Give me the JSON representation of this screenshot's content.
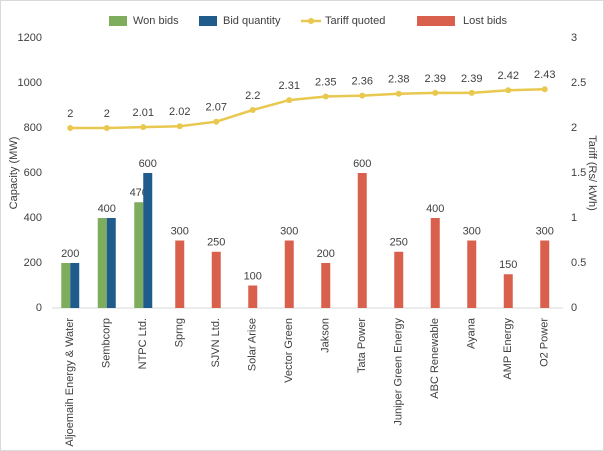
{
  "chart_data": {
    "type": "bar",
    "categories": [
      "Aljoemaih Energy & Water",
      "Sembcorp",
      "NTPC Ltd.",
      "Sprng",
      "SJVN Ltd.",
      "Solar Arise",
      "Vector Green",
      "Jakson",
      "Tata Power",
      "Juniper Green Energy",
      "ABC Renewable",
      "Ayana",
      "AMP Energy",
      "O2 Power"
    ],
    "series": [
      {
        "name": "Won bids",
        "type": "bar",
        "color": "#7fad5e",
        "values": [
          200,
          400,
          470,
          null,
          null,
          null,
          null,
          null,
          null,
          null,
          null,
          null,
          null,
          null
        ]
      },
      {
        "name": "Bid quantity",
        "type": "bar",
        "color": "#1f5c8b",
        "values": [
          200,
          400,
          600,
          null,
          null,
          null,
          null,
          null,
          null,
          null,
          null,
          null,
          null,
          null
        ]
      },
      {
        "name": "Tariff quoted",
        "type": "line",
        "axis": "y2",
        "color": "#e8c84e",
        "values": [
          2,
          2,
          2.01,
          2.02,
          2.07,
          2.2,
          2.31,
          2.35,
          2.36,
          2.38,
          2.39,
          2.39,
          2.42,
          2.43
        ]
      },
      {
        "name": "Lost bids",
        "type": "bar",
        "color": "#d9604c",
        "values": [
          null,
          null,
          null,
          300,
          250,
          100,
          300,
          200,
          600,
          250,
          400,
          300,
          150,
          300
        ]
      }
    ],
    "y_label": "Capacity (MW)",
    "y2_label": "Tariff (Rs/ kWh)",
    "ylim": [
      0,
      1200
    ],
    "yticks": [
      0,
      200,
      400,
      600,
      800,
      1000,
      1200
    ],
    "y2lim": [
      0,
      3
    ],
    "y2ticks": [
      0,
      0.5,
      1,
      1.5,
      2,
      2.5,
      3
    ],
    "grid": false,
    "legend": "top"
  }
}
